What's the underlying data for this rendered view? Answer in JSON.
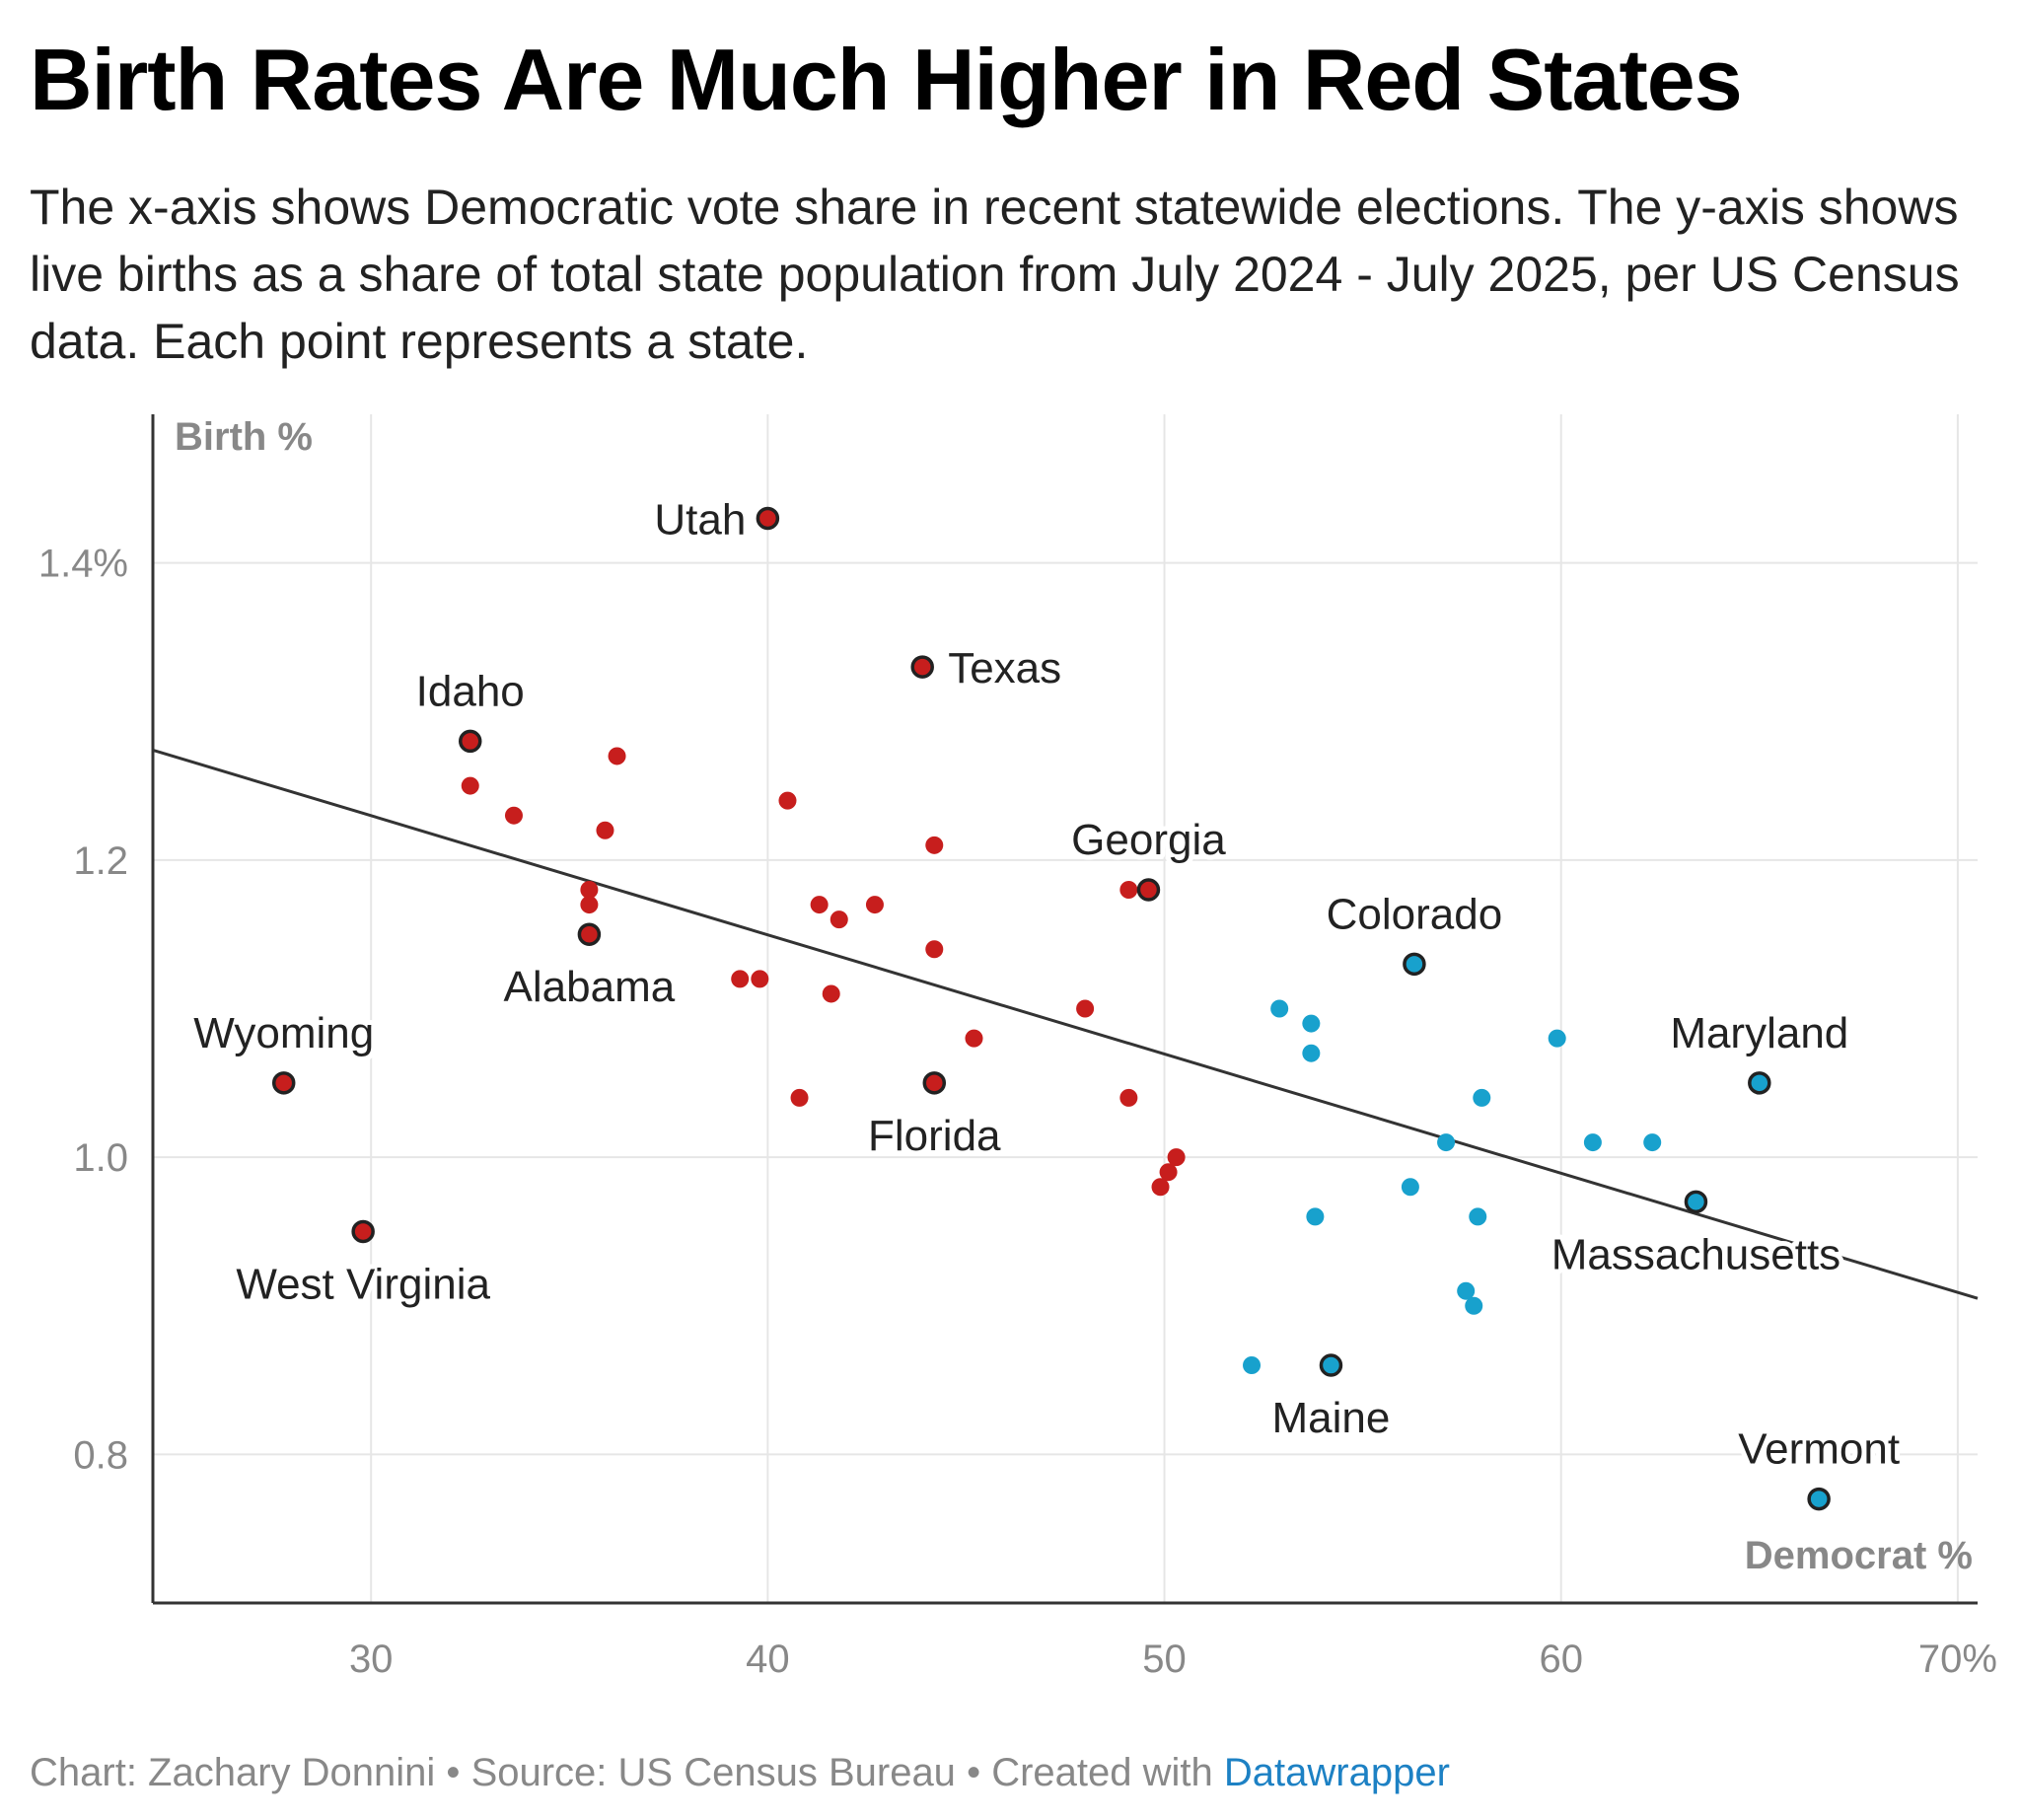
{
  "title": "Birth Rates Are Much Higher in Red States",
  "subtitle": "The x-axis shows Democratic vote share in recent statewide elections. The y-axis shows live births as a share of total state population from July 2024 - July 2025, per US Census data. Each point represents a state.",
  "footer": {
    "chart_by": "Chart: Zachary Donnini",
    "source": "Source: US Census Bureau",
    "created_with": "Created with",
    "tool": "Datawrapper",
    "separator": "•"
  },
  "colors": {
    "republican": "#c71e1d",
    "democrat": "#18a1cd",
    "trendline": "#333333",
    "grid": "#e6e6e6",
    "axis_text": "#888888"
  },
  "chart_data": {
    "type": "scatter",
    "title": "Birth Rates Are Much Higher in Red States",
    "xlabel": "Democrat %",
    "ylabel": "Birth %",
    "xlim": [
      24.5,
      70.5
    ],
    "ylim": [
      0.7,
      1.5
    ],
    "x_ticks": [
      {
        "value": 30,
        "label": "30"
      },
      {
        "value": 40,
        "label": "40"
      },
      {
        "value": 50,
        "label": "50"
      },
      {
        "value": 60,
        "label": "60"
      },
      {
        "value": 70,
        "label": "70%"
      }
    ],
    "y_ticks": [
      {
        "value": 0.8,
        "label": "0.8"
      },
      {
        "value": 1.0,
        "label": "1.0"
      },
      {
        "value": 1.2,
        "label": "1.2"
      },
      {
        "value": 1.4,
        "label": "1.4%"
      }
    ],
    "grid": true,
    "trendline": {
      "x": [
        24.5,
        70.5
      ],
      "y": [
        1.274,
        0.905
      ]
    },
    "labeled_points": [
      {
        "label": "Utah",
        "x": 40.0,
        "y": 1.43,
        "party": "R",
        "anchor": "left"
      },
      {
        "label": "Texas",
        "x": 43.9,
        "y": 1.33,
        "party": "R",
        "anchor": "right"
      },
      {
        "label": "Idaho",
        "x": 32.5,
        "y": 1.28,
        "party": "R",
        "anchor": "above"
      },
      {
        "label": "Georgia",
        "x": 49.6,
        "y": 1.18,
        "party": "R",
        "anchor": "above"
      },
      {
        "label": "Alabama",
        "x": 35.5,
        "y": 1.15,
        "party": "R",
        "anchor": "below"
      },
      {
        "label": "Colorado",
        "x": 56.3,
        "y": 1.13,
        "party": "D",
        "anchor": "above"
      },
      {
        "label": "Wyoming",
        "x": 27.8,
        "y": 1.05,
        "party": "R",
        "anchor": "above"
      },
      {
        "label": "Florida",
        "x": 44.2,
        "y": 1.05,
        "party": "R",
        "anchor": "below"
      },
      {
        "label": "Maryland",
        "x": 65.0,
        "y": 1.05,
        "party": "D",
        "anchor": "above"
      },
      {
        "label": "Massachusetts",
        "x": 63.4,
        "y": 0.97,
        "party": "D",
        "anchor": "below"
      },
      {
        "label": "West Virginia",
        "x": 29.8,
        "y": 0.95,
        "party": "R",
        "anchor": "below"
      },
      {
        "label": "Maine",
        "x": 54.2,
        "y": 0.86,
        "party": "D",
        "anchor": "below"
      },
      {
        "label": "Vermont",
        "x": 66.5,
        "y": 0.77,
        "party": "D",
        "anchor": "above"
      }
    ],
    "series": [
      {
        "party": "R",
        "points": [
          [
            32.5,
            1.25
          ],
          [
            33.6,
            1.23
          ],
          [
            35.5,
            1.18
          ],
          [
            35.5,
            1.17
          ],
          [
            35.9,
            1.22
          ],
          [
            36.2,
            1.27
          ],
          [
            39.3,
            1.12
          ],
          [
            39.8,
            1.12
          ],
          [
            40.5,
            1.24
          ],
          [
            40.8,
            1.04
          ],
          [
            41.3,
            1.17
          ],
          [
            41.6,
            1.11
          ],
          [
            41.8,
            1.16
          ],
          [
            42.7,
            1.17
          ],
          [
            44.2,
            1.21
          ],
          [
            44.2,
            1.14
          ],
          [
            45.2,
            1.08
          ],
          [
            48.0,
            1.1
          ],
          [
            49.1,
            1.18
          ],
          [
            49.1,
            1.04
          ],
          [
            49.9,
            0.98
          ],
          [
            50.1,
            0.99
          ],
          [
            50.3,
            1.0
          ]
        ]
      },
      {
        "party": "D",
        "points": [
          [
            52.2,
            0.86
          ],
          [
            52.9,
            1.1
          ],
          [
            53.7,
            1.09
          ],
          [
            53.7,
            1.07
          ],
          [
            53.8,
            0.96
          ],
          [
            56.2,
            0.98
          ],
          [
            57.1,
            1.01
          ],
          [
            57.6,
            0.91
          ],
          [
            57.8,
            0.9
          ],
          [
            57.9,
            0.96
          ],
          [
            58.0,
            1.04
          ],
          [
            59.9,
            1.08
          ],
          [
            60.8,
            1.01
          ],
          [
            62.3,
            1.01
          ]
        ]
      }
    ]
  }
}
